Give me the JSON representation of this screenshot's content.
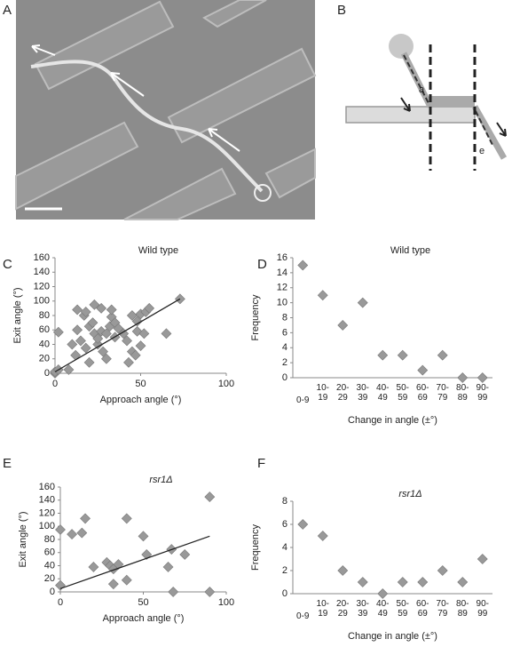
{
  "panel_labels": [
    "A",
    "B",
    "C",
    "D",
    "E",
    "F"
  ],
  "diagram": {
    "labels": [
      "a",
      "e"
    ]
  },
  "chart_data": [
    {
      "type": "scatter",
      "title": "Wild type",
      "x_label": "Approach angle (°)",
      "y_label": "Exit angle (°)",
      "color": "#999999",
      "x": [
        0,
        0,
        2,
        2,
        8,
        10,
        12,
        13,
        13,
        15,
        17,
        18,
        18,
        20,
        20,
        22,
        23,
        23,
        25,
        25,
        27,
        27,
        28,
        30,
        30,
        32,
        33,
        33,
        35,
        35,
        37,
        40,
        42,
        43,
        45,
        45,
        47,
        48,
        48,
        50,
        50,
        52,
        53,
        55,
        65,
        73
      ],
      "y": [
        0,
        2,
        57,
        5,
        5,
        40,
        25,
        60,
        88,
        45,
        80,
        85,
        35,
        15,
        65,
        70,
        95,
        55,
        40,
        48,
        58,
        90,
        30,
        55,
        20,
        65,
        78,
        88,
        70,
        50,
        62,
        55,
        45,
        15,
        30,
        80,
        25,
        58,
        72,
        82,
        38,
        55,
        85,
        90,
        55,
        103
      ],
      "trendline": {
        "x": [
          0,
          73
        ],
        "y": [
          2,
          103
        ]
      },
      "xlim": [
        0,
        100
      ],
      "xticks": [
        0,
        50,
        100
      ],
      "ylim": [
        0,
        160
      ],
      "yticks": [
        0,
        20,
        40,
        60,
        80,
        100,
        120,
        140,
        160
      ]
    },
    {
      "type": "scatter",
      "title": "Wild type",
      "x_label": "Change in angle (±°)",
      "y_label": "Frequency",
      "color": "#999999",
      "categories": [
        "0-9",
        "10-19",
        "20-29",
        "30-39",
        "40-49",
        "50-59",
        "60-69",
        "70-79",
        "80-89",
        "90-99"
      ],
      "values": [
        15,
        11,
        7,
        10,
        3,
        3,
        1,
        3,
        0,
        0
      ],
      "ylim": [
        0,
        16
      ],
      "yticks": [
        0,
        2,
        4,
        6,
        8,
        10,
        12,
        14,
        16
      ]
    },
    {
      "type": "scatter",
      "title": "rsr1Δ",
      "x_label": "Approach angle (°)",
      "y_label": "Exit angle (°)",
      "color": "#999999",
      "x": [
        0,
        0,
        7,
        13,
        15,
        20,
        28,
        30,
        32,
        32,
        35,
        40,
        40,
        50,
        52,
        65,
        67,
        68,
        75,
        90,
        90
      ],
      "y": [
        95,
        10,
        88,
        90,
        112,
        38,
        45,
        40,
        35,
        12,
        42,
        112,
        18,
        85,
        57,
        38,
        65,
        0,
        57,
        145,
        0
      ],
      "trendline": {
        "x": [
          0,
          90
        ],
        "y": [
          5,
          85
        ]
      },
      "xlim": [
        0,
        100
      ],
      "xticks": [
        0,
        50,
        100
      ],
      "ylim": [
        0,
        160
      ],
      "yticks": [
        0,
        20,
        40,
        60,
        80,
        100,
        120,
        140,
        160
      ]
    },
    {
      "type": "scatter",
      "title": "rsr1Δ",
      "x_label": "Change in angle (±°)",
      "y_label": "Frequency",
      "color": "#999999",
      "categories": [
        "0-9",
        "10-19",
        "20-29",
        "30-39",
        "40-49",
        "50-59",
        "60-69",
        "70-79",
        "80-89",
        "90-99"
      ],
      "values": [
        6,
        5,
        2,
        1,
        0,
        1,
        1,
        2,
        1,
        3
      ],
      "ylim": [
        0,
        8
      ],
      "yticks": [
        0,
        2,
        4,
        6,
        8
      ]
    }
  ]
}
